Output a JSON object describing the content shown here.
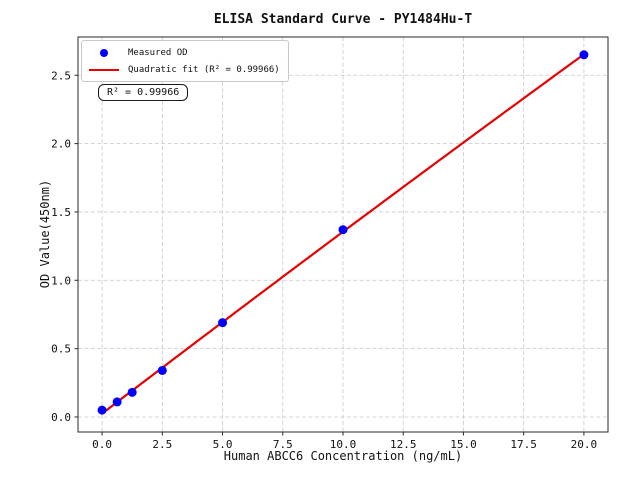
{
  "chart_data": {
    "type": "scatter",
    "title": "ELISA Standard Curve - PY1484Hu-T",
    "xlabel": "Human ABCC6 Concentration (ng/mL)",
    "ylabel": "OD Value(450nm)",
    "xlim": [
      -1,
      21
    ],
    "ylim": [
      -0.11,
      2.78
    ],
    "grid": true,
    "grid_color": "#c8c8c8",
    "axis_color": "#2a2a2a",
    "x_ticks": [
      {
        "v": 0,
        "label": "0.0"
      },
      {
        "v": 2.5,
        "label": "2.5"
      },
      {
        "v": 5,
        "label": "5.0"
      },
      {
        "v": 7.5,
        "label": "7.5"
      },
      {
        "v": 10,
        "label": "10.0"
      },
      {
        "v": 12.5,
        "label": "12.5"
      },
      {
        "v": 15,
        "label": "15.0"
      },
      {
        "v": 17.5,
        "label": "17.5"
      },
      {
        "v": 20,
        "label": "20.0"
      }
    ],
    "y_ticks": [
      {
        "v": 0,
        "label": "0.0"
      },
      {
        "v": 0.5,
        "label": "0.5"
      },
      {
        "v": 1,
        "label": "1.0"
      },
      {
        "v": 1.5,
        "label": "1.5"
      },
      {
        "v": 2,
        "label": "2.0"
      },
      {
        "v": 2.5,
        "label": "2.5"
      }
    ],
    "series": [
      {
        "name": "Measured OD",
        "type": "scatter",
        "color": "#0000ff",
        "x": [
          0,
          0.625,
          1.25,
          2.5,
          5,
          10,
          20
        ],
        "y": [
          0.05,
          0.11,
          0.18,
          0.34,
          0.69,
          1.37,
          2.65
        ]
      },
      {
        "name": "Quadratic fit (R² = 0.99966)",
        "type": "line",
        "color": "#e60000",
        "fit": {
          "kind": "quadratic",
          "a": -0.00016,
          "b": 0.1346,
          "c": 0.025,
          "x_range": [
            0,
            20
          ]
        },
        "r_squared": 0.99966
      }
    ],
    "legend_position": "upper left"
  },
  "annotation": {
    "text": "R² = 0.99966"
  }
}
